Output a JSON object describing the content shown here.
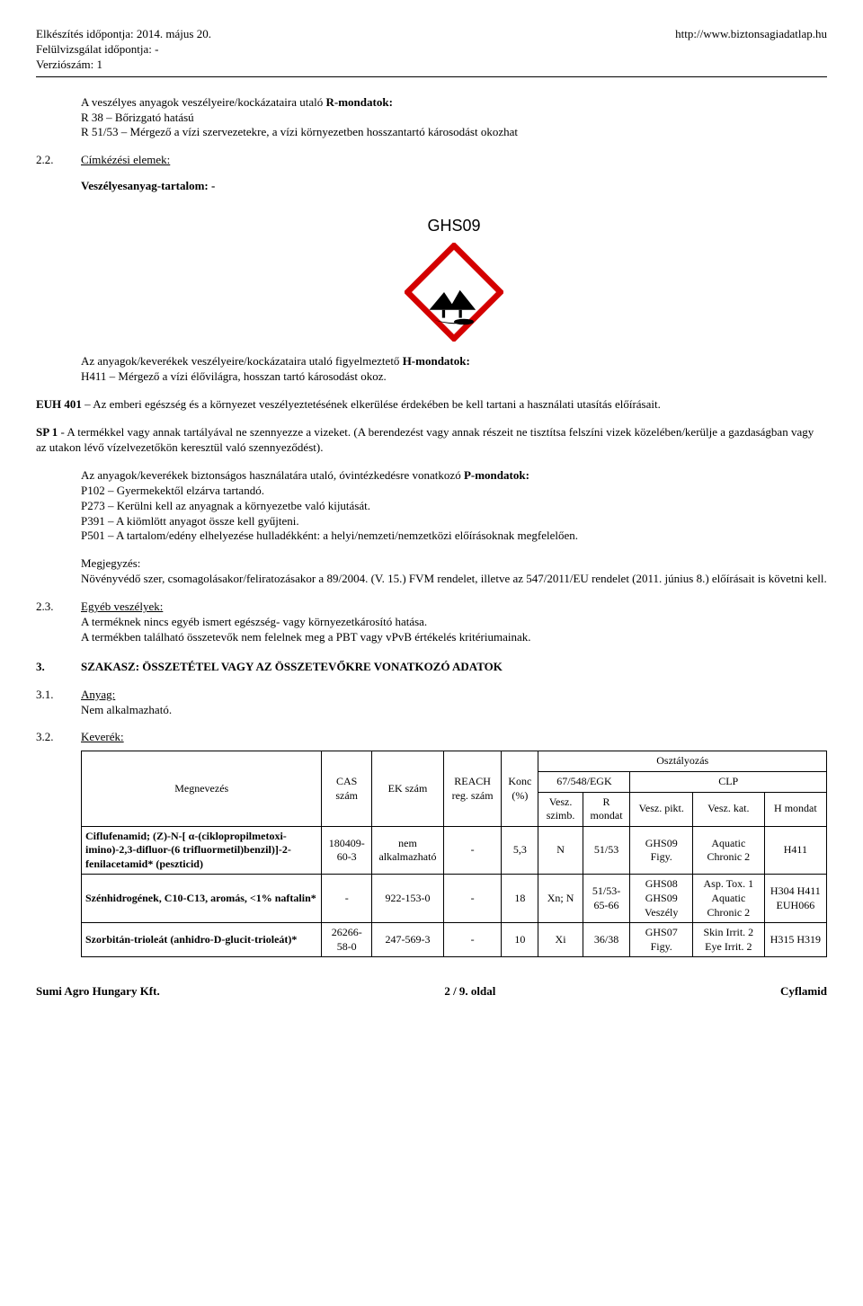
{
  "header": {
    "line1": "Elkészítés időpontja: 2014. május 20.",
    "line2": "Felülvizsgálat időpontja: -",
    "line3": "Verziószám: 1",
    "url": "http://www.biztonsagiadatlap.hu"
  },
  "r_intro": "A veszélyes anyagok veszélyeire/kockázataira utaló",
  "r_intro_bold": " R-mondatok:",
  "r38": "R 38 – Bőrizgató hatású",
  "r5153": "R 51/53 – Mérgező a vízi szervezetekre, a vízi környezetben hosszantartó károsodást okozhat",
  "s22_num": "2.2.",
  "s22_title": "Címkézési elemek:",
  "s22_line": "Veszélyesanyag-tartalom: -",
  "ghs_label": "GHS09",
  "hm_intro": "Az anyagok/keverékek veszélyeire/kockázataira utaló figyelmeztető",
  "hm_intro_bold": " H-mondatok:",
  "h411": "H411 – Mérgező a vízi élővilágra, hosszan tartó károsodást okoz.",
  "euh401_bold": "EUH 401",
  "euh401": " – Az emberi egészség és a környezet veszélyeztetésének elkerülése érdekében be kell tartani a használati utasítás előírásait.",
  "sp1_bold": "SP 1",
  "sp1": " - A termékkel vagy annak tartályával ne szennyezze a vizeket. (A berendezést vagy annak részeit ne tisztítsa felszíni vizek közelében/kerülje a gazdaságban vagy az utakon lévő vízelvezetőkön keresztül való szennyeződést).",
  "pm_intro": "Az anyagok/keverékek biztonságos használatára utaló, óvintézkedésre vonatkozó",
  "pm_intro_bold": " P-mondatok:",
  "p102": "P102 – Gyermekektől elzárva tartandó.",
  "p273": "P273 – Kerülni kell az anyagnak a környezetbe való kijutását.",
  "p391": "P391 – A kiömlött anyagot össze kell gyűjteni.",
  "p501": "P501 – A tartalom/edény elhelyezése hulladékként: a helyi/nemzeti/nemzetközi előírásoknak megfelelően.",
  "note_label": "Megjegyzés:",
  "note_text": "Növényvédő szer, csomagolásakor/feliratozásakor a 89/2004. (V. 15.) FVM rendelet, illetve az 547/2011/EU rendelet (2011. június 8.) előírásait is követni kell.",
  "s23_num": "2.3.",
  "s23_title": "Egyéb veszélyek:",
  "s23_l1": "A terméknek nincs egyéb ismert egészség- vagy környezetkárosító hatása.",
  "s23_l2": "A termékben található összetevők nem felelnek meg a PBT vagy vPvB értékelés kritériumainak.",
  "s3_num": "3.",
  "s3_title": "SZAKASZ: ÖSSZETÉTEL VAGY AZ ÖSSZETEVŐKRE VONATKOZÓ ADATOK",
  "s31_num": "3.1.",
  "s31_title": "Anyag:",
  "s31_text": "Nem alkalmazható.",
  "s32_num": "3.2.",
  "s32_title": "Keverék:",
  "table": {
    "headers": {
      "megnevezes": "Megnevezés",
      "cas": "CAS szám",
      "ek": "EK szám",
      "reach": "REACH reg. szám",
      "konc": "Konc (%)",
      "oszt": "Osztályozás",
      "egc": "67/548/EGK",
      "clp": "CLP",
      "vszimb": "Vesz. szimb.",
      "rmondat": "R mondat",
      "vpikt": "Vesz. pikt.",
      "vkat": "Vesz. kat.",
      "hmondat": "H mondat"
    },
    "rows": [
      {
        "name": "Ciflufenamid; (Z)-N-[ α-(ciklopropilmetoxi-imino)-2,3-difluor-(6 trifluormetil)benzil)]-2-fenilacetamid* (peszticid)",
        "cas": "180409-60-3",
        "ek": "nem alkalmazható",
        "reach": "-",
        "konc": "5,3",
        "vszimb": "N",
        "rmondat": "51/53",
        "vpikt": "GHS09 Figy.",
        "vkat": "Aquatic Chronic 2",
        "hmondat": "H411"
      },
      {
        "name": "Szénhidrogének, C10-C13, aromás, <1% naftalin*",
        "cas": "-",
        "ek": "922-153-0",
        "reach": "-",
        "konc": "18",
        "vszimb": "Xn; N",
        "rmondat": "51/53- 65-66",
        "vpikt": "GHS08 GHS09 Veszély",
        "vkat": "Asp. Tox. 1 Aquatic Chronic 2",
        "hmondat": "H304 H411 EUH066"
      },
      {
        "name": "Szorbitán-trioleát (anhidro-D-glucit-trioleát)*",
        "cas": "26266-58-0",
        "ek": "247-569-3",
        "reach": "-",
        "konc": "10",
        "vszimb": "Xi",
        "rmondat": "36/38",
        "vpikt": "GHS07 Figy.",
        "vkat": "Skin Irrit. 2 Eye Irrit. 2",
        "hmondat": "H315 H319"
      }
    ]
  },
  "footer": {
    "left": "Sumi Agro Hungary Kft.",
    "center": "2 / 9. oldal",
    "right": "Cyflamid"
  }
}
